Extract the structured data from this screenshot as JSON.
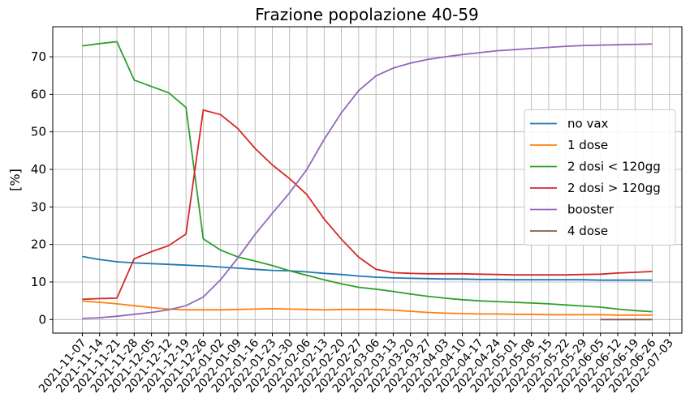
{
  "chart_data": {
    "type": "line",
    "title": "Frazione popolazione 40-59",
    "ylabel": "[%]",
    "x": [
      "2021-11-07",
      "2021-11-14",
      "2021-11-21",
      "2021-11-28",
      "2021-12-05",
      "2021-12-12",
      "2021-12-19",
      "2021-12-26",
      "2022-01-02",
      "2022-01-09",
      "2022-01-16",
      "2022-01-23",
      "2022-01-30",
      "2022-02-06",
      "2022-02-13",
      "2022-02-20",
      "2022-02-27",
      "2022-03-06",
      "2022-03-13",
      "2022-03-20",
      "2022-03-27",
      "2022-04-03",
      "2022-04-10",
      "2022-04-17",
      "2022-04-24",
      "2022-05-01",
      "2022-05-08",
      "2022-05-15",
      "2022-05-22",
      "2022-05-29",
      "2022-06-05",
      "2022-06-12",
      "2022-06-19",
      "2022-06-26"
    ],
    "series": [
      {
        "name": "no vax",
        "color": "#1f77b4",
        "values": [
          16.8,
          16,
          15.4,
          15.1,
          14.9,
          14.7,
          14.5,
          14.3,
          14,
          13.7,
          13.4,
          13.1,
          13,
          12.7,
          12.3,
          12,
          11.6,
          11.3,
          11.1,
          11,
          10.9,
          10.8,
          10.8,
          10.7,
          10.7,
          10.6,
          10.6,
          10.6,
          10.6,
          10.6,
          10.5,
          10.5,
          10.5,
          10.5
        ]
      },
      {
        "name": "1 dose",
        "color": "#ff7f0e",
        "values": [
          4.9,
          4.6,
          4.2,
          3.7,
          3.2,
          2.8,
          2.6,
          2.6,
          2.6,
          2.7,
          2.8,
          2.9,
          2.8,
          2.7,
          2.6,
          2.7,
          2.7,
          2.7,
          2.5,
          2.2,
          1.9,
          1.7,
          1.6,
          1.5,
          1.5,
          1.4,
          1.4,
          1.3,
          1.3,
          1.3,
          1.3,
          1.2,
          1.2,
          1.2
        ]
      },
      {
        "name": "2 dosi < 120gg",
        "color": "#2ca02c",
        "values": [
          72.9,
          73.5,
          74,
          63.8,
          62.1,
          60.4,
          56.5,
          21.5,
          18.5,
          16.7,
          15.6,
          14.4,
          13,
          11.8,
          10.6,
          9.5,
          8.6,
          8.1,
          7.5,
          6.8,
          6.2,
          5.7,
          5.3,
          5,
          4.8,
          4.6,
          4.4,
          4.2,
          3.9,
          3.6,
          3.3,
          2.8,
          2.4,
          2.1
        ]
      },
      {
        "name": "2 dosi > 120gg",
        "color": "#d62728",
        "values": [
          5.4,
          5.6,
          5.7,
          16.2,
          18.1,
          19.7,
          22.8,
          55.8,
          54.6,
          50.9,
          45.6,
          41.2,
          37.5,
          33.3,
          26.8,
          21.4,
          16.6,
          13.4,
          12.5,
          12.3,
          12.2,
          12.2,
          12.2,
          12.1,
          12,
          11.9,
          11.9,
          11.9,
          11.9,
          12,
          12.1,
          12.4,
          12.6,
          12.8
        ]
      },
      {
        "name": "booster",
        "color": "#9467bd",
        "values": [
          0.3,
          0.5,
          0.9,
          1.4,
          1.9,
          2.6,
          3.7,
          6,
          10.6,
          16.4,
          22.7,
          28.3,
          33.8,
          40,
          48,
          55.1,
          61,
          64.9,
          67,
          68.3,
          69.3,
          70,
          70.6,
          71.1,
          71.6,
          71.9,
          72.2,
          72.5,
          72.8,
          73,
          73.1,
          73.2,
          73.3,
          73.4
        ]
      },
      {
        "name": "4 dose",
        "color": "#8c564b",
        "values": [
          null,
          null,
          null,
          null,
          null,
          null,
          null,
          null,
          null,
          null,
          null,
          null,
          null,
          null,
          null,
          null,
          null,
          null,
          null,
          null,
          null,
          null,
          null,
          null,
          null,
          null,
          null,
          null,
          null,
          null,
          0,
          0,
          0,
          0
        ]
      }
    ],
    "xlim": [
      "2021-10-26",
      "2022-07-08"
    ],
    "xticks": [
      "2021-11-07",
      "2021-11-14",
      "2021-11-21",
      "2021-11-28",
      "2021-12-05",
      "2021-12-12",
      "2021-12-19",
      "2021-12-26",
      "2022-01-02",
      "2022-01-09",
      "2022-01-16",
      "2022-01-23",
      "2022-01-30",
      "2022-02-06",
      "2022-02-13",
      "2022-02-20",
      "2022-02-27",
      "2022-03-06",
      "2022-03-13",
      "2022-03-20",
      "2022-03-27",
      "2022-04-03",
      "2022-04-10",
      "2022-04-17",
      "2022-04-24",
      "2022-05-01",
      "2022-05-08",
      "2022-05-15",
      "2022-05-22",
      "2022-05-29",
      "2022-06-05",
      "2022-06-12",
      "2022-06-19",
      "2022-06-26",
      "2022-07-03"
    ],
    "ylim": [
      -3.6,
      78
    ],
    "yticks": [
      0,
      10,
      20,
      30,
      40,
      50,
      60,
      70
    ],
    "grid": true,
    "legend": "center right"
  }
}
